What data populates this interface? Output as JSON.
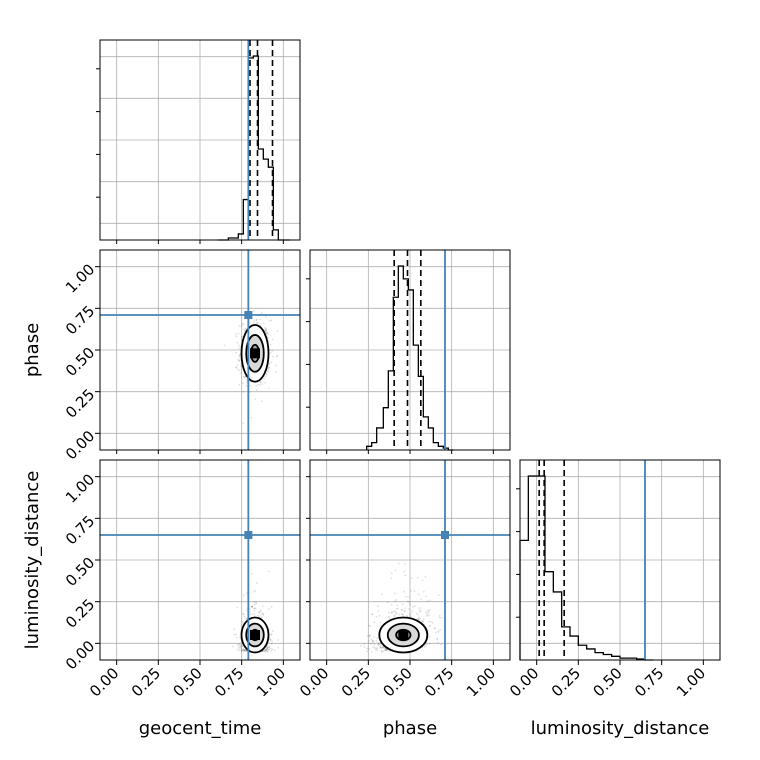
{
  "chart_data": {
    "type": "corner",
    "parameters": [
      "geocent_time",
      "phase",
      "luminosity_distance"
    ],
    "axis_range": [
      -0.1,
      1.1
    ],
    "tick_values": [
      0.0,
      0.25,
      0.5,
      0.75,
      1.0
    ],
    "tick_labels": [
      "0.00",
      "0.25",
      "0.50",
      "0.75",
      "1.00"
    ],
    "grid": true,
    "colors": {
      "truth": "#4682b4",
      "hist": "#000000",
      "scatter": "#000000"
    },
    "truths": {
      "geocent_time": 0.79,
      "phase": 0.71,
      "luminosity_distance": 0.65
    },
    "histograms": {
      "geocent_time": {
        "bin_edges": [
          0.61,
          0.67,
          0.73,
          0.76,
          0.79,
          0.82,
          0.85,
          0.88,
          0.91,
          0.94,
          0.97,
          1.0,
          1.04
        ],
        "counts": [
          0.0,
          0.01,
          0.03,
          0.2,
          0.9,
          0.91,
          0.45,
          0.4,
          0.36,
          0.05,
          0.0,
          0.0
        ],
        "quantiles": [
          0.8,
          0.845,
          0.935
        ]
      },
      "phase": {
        "bin_edges": [
          0.24,
          0.27,
          0.3,
          0.34,
          0.37,
          0.4,
          0.43,
          0.46,
          0.49,
          0.52,
          0.55,
          0.58,
          0.61,
          0.64,
          0.67,
          0.7,
          0.73,
          0.76
        ],
        "counts": [
          0.02,
          0.04,
          0.12,
          0.23,
          0.43,
          0.83,
          1.0,
          0.93,
          0.87,
          0.57,
          0.4,
          0.18,
          0.12,
          0.04,
          0.02,
          0.01,
          0.0
        ],
        "quantiles": [
          0.405,
          0.485,
          0.565
        ]
      },
      "luminosity_distance": {
        "bin_edges": [
          -0.1,
          -0.05,
          0.0,
          0.05,
          0.1,
          0.15,
          0.2,
          0.25,
          0.3,
          0.35,
          0.4,
          0.45,
          0.5,
          0.55,
          0.6,
          0.65,
          0.7
        ],
        "counts": [
          0.65,
          1.0,
          1.0,
          0.48,
          0.37,
          0.18,
          0.13,
          0.08,
          0.06,
          0.04,
          0.03,
          0.02,
          0.01,
          0.01,
          0.005,
          0.0
        ],
        "quantiles": [
          0.015,
          0.045,
          0.165
        ]
      }
    },
    "joint_panels": [
      {
        "x": "geocent_time",
        "y": "phase",
        "center": [
          0.83,
          0.48
        ],
        "spread": [
          0.045,
          0.1
        ]
      },
      {
        "x": "geocent_time",
        "y": "luminosity_distance",
        "center": [
          0.83,
          0.05
        ],
        "spread": [
          0.045,
          0.07
        ]
      },
      {
        "x": "phase",
        "y": "luminosity_distance",
        "center": [
          0.46,
          0.05
        ],
        "spread": [
          0.08,
          0.07
        ]
      }
    ]
  }
}
